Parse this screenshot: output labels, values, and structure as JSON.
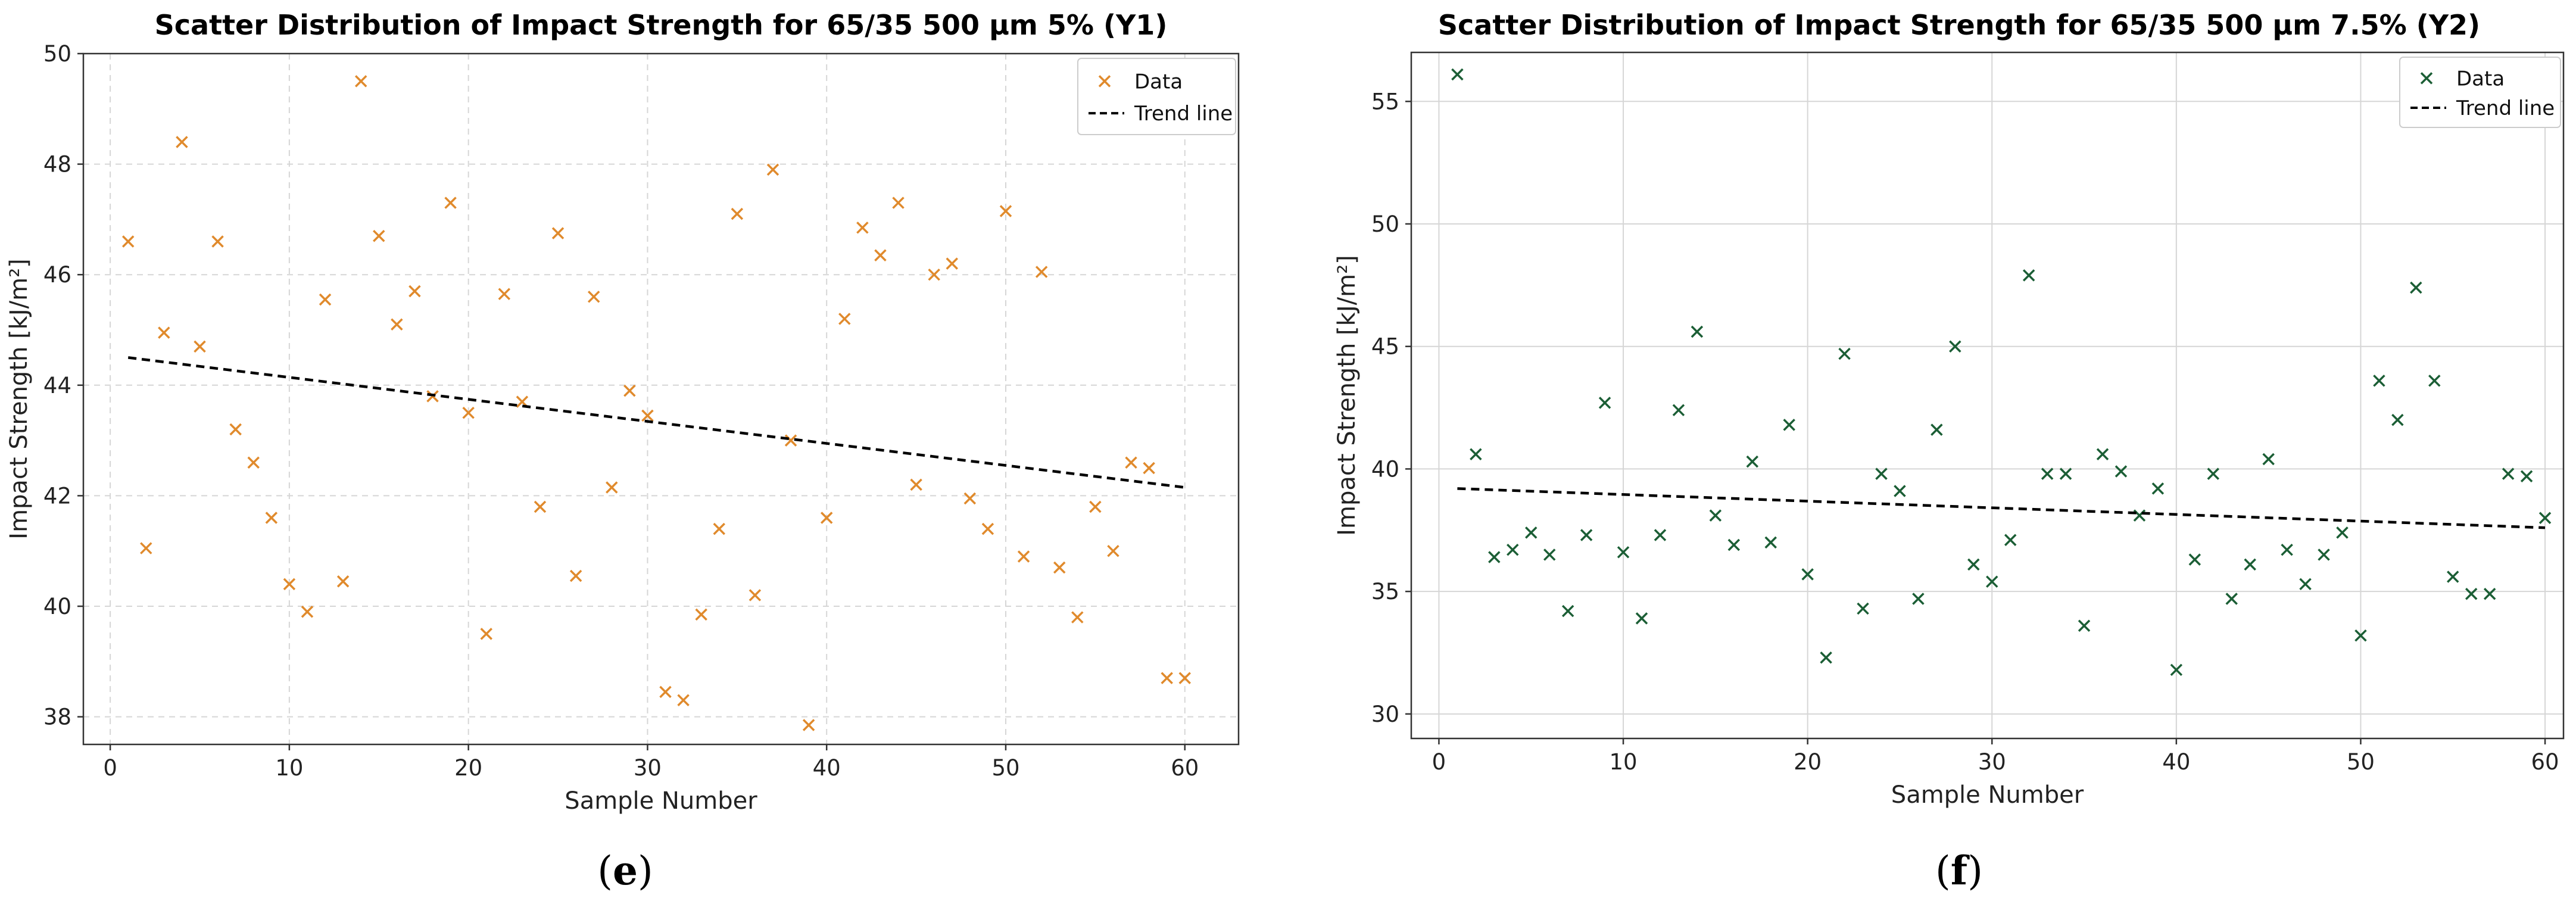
{
  "chart_data": [
    {
      "type": "scatter",
      "title": "Scatter Distribution of Impact Strength for 65/35 500 μm 5% (Y1)",
      "xlabel": "Sample Number",
      "ylabel": "Impact Strength [kJ/m²]",
      "xlim": [
        -1.5,
        63
      ],
      "ylim": [
        37.5,
        50
      ],
      "xticks": [
        "0",
        "10",
        "20",
        "30",
        "40",
        "50",
        "60"
      ],
      "yticks": [
        "38",
        "40",
        "42",
        "44",
        "46",
        "48",
        "50"
      ],
      "grid": "dashed",
      "legend_position": "top-right",
      "caption": "(e)",
      "caption_letter": "e",
      "marker_color": "#e08a2c",
      "series": [
        {
          "name": "Data",
          "x": [
            1,
            2,
            3,
            4,
            5,
            6,
            7,
            8,
            9,
            10,
            11,
            12,
            13,
            14,
            15,
            16,
            17,
            18,
            19,
            20,
            21,
            22,
            23,
            24,
            25,
            26,
            27,
            28,
            29,
            30,
            31,
            32,
            33,
            34,
            35,
            36,
            37,
            38,
            39,
            40,
            41,
            42,
            43,
            44,
            45,
            46,
            47,
            48,
            49,
            50,
            51,
            52,
            53,
            54,
            55,
            56,
            57,
            58,
            59,
            60
          ],
          "y": [
            46.6,
            41.05,
            44.95,
            48.4,
            44.7,
            46.6,
            43.2,
            42.6,
            41.6,
            40.4,
            39.9,
            45.55,
            40.45,
            49.5,
            46.7,
            45.1,
            45.7,
            43.8,
            47.3,
            43.5,
            39.5,
            45.65,
            43.7,
            41.8,
            46.75,
            40.55,
            45.6,
            42.15,
            43.9,
            43.45,
            38.45,
            38.3,
            39.85,
            41.4,
            47.1,
            40.2,
            47.9,
            43.0,
            37.85,
            41.6,
            45.2,
            46.85,
            46.35,
            47.3,
            42.2,
            46.0,
            46.2,
            41.95,
            41.4,
            47.15,
            40.9,
            46.05,
            40.7,
            39.8,
            41.8,
            41.0,
            42.6,
            42.5,
            38.7,
            38.7
          ]
        },
        {
          "name": "Trend line",
          "x": [
            1,
            60
          ],
          "y": [
            44.5,
            42.15
          ]
        }
      ]
    },
    {
      "type": "scatter",
      "title": "Scatter Distribution of Impact Strength for 65/35 500 μm 7.5% (Y2)",
      "xlabel": "Sample Number",
      "ylabel": "Impact Strength [kJ/m²]",
      "xlim": [
        -1.5,
        61
      ],
      "ylim": [
        29,
        57
      ],
      "xticks": [
        "0",
        "10",
        "20",
        "30",
        "40",
        "50",
        "60"
      ],
      "yticks": [
        "30",
        "35",
        "40",
        "45",
        "50",
        "55"
      ],
      "grid": "solid",
      "legend_position": "top-right",
      "caption": "(f)",
      "caption_letter": "f",
      "marker_color": "#1b5e35",
      "series": [
        {
          "name": "Data",
          "x": [
            1,
            2,
            3,
            4,
            5,
            6,
            7,
            8,
            9,
            10,
            11,
            12,
            13,
            14,
            15,
            16,
            17,
            18,
            19,
            20,
            21,
            22,
            23,
            24,
            25,
            26,
            27,
            28,
            29,
            30,
            31,
            32,
            33,
            34,
            35,
            36,
            37,
            38,
            39,
            40,
            41,
            42,
            43,
            44,
            45,
            46,
            47,
            48,
            49,
            50,
            51,
            52,
            53,
            54,
            55,
            56,
            57,
            58,
            59,
            60
          ],
          "y": [
            56.1,
            40.6,
            36.4,
            36.7,
            37.4,
            36.5,
            34.2,
            37.3,
            42.7,
            36.6,
            33.9,
            37.3,
            42.4,
            45.6,
            38.1,
            36.9,
            40.3,
            37.0,
            41.8,
            35.7,
            32.3,
            44.7,
            34.3,
            39.8,
            39.1,
            34.7,
            41.6,
            45.0,
            36.1,
            35.4,
            37.1,
            47.9,
            39.8,
            39.8,
            33.6,
            40.6,
            39.9,
            38.1,
            39.2,
            31.8,
            36.3,
            39.8,
            34.7,
            36.1,
            40.4,
            36.7,
            35.3,
            36.5,
            37.4,
            33.2,
            43.6,
            42.0,
            47.4,
            43.6,
            35.6,
            34.9,
            34.9,
            39.8,
            39.7,
            38.0
          ]
        },
        {
          "name": "Trend line",
          "x": [
            1,
            60
          ],
          "y": [
            39.2,
            37.6
          ]
        }
      ]
    }
  ]
}
